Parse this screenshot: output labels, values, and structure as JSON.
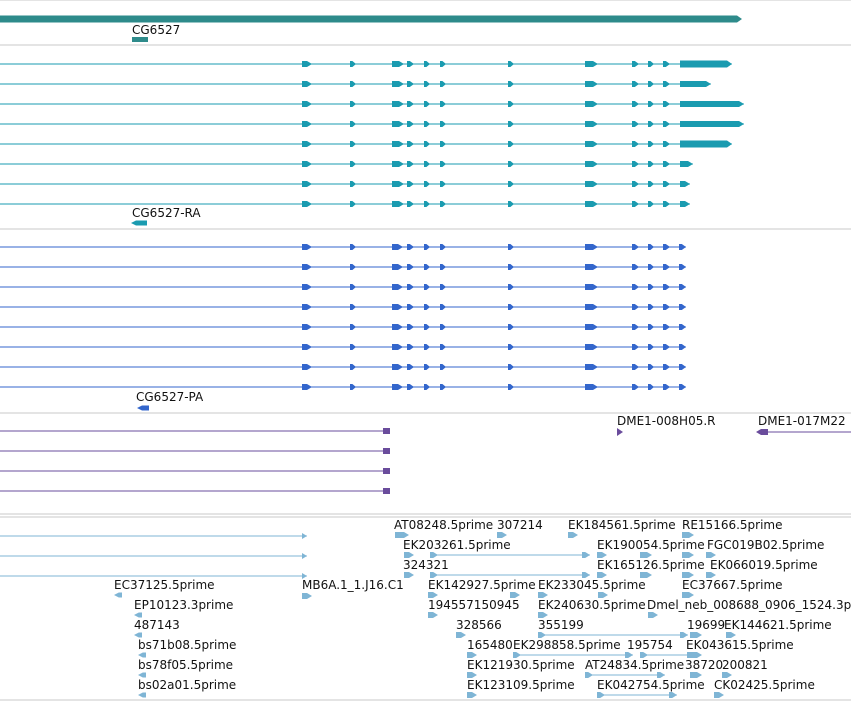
{
  "colors": {
    "gene": "#2e8b8b",
    "transcript": "#1a9bb0",
    "protein": "#3366cc",
    "clone": "#6a4c9c",
    "est": "#7fb5d5",
    "separator": "#c8c8c8",
    "text": "#111111"
  },
  "gene_track": {
    "gene_name": "CG6527"
  },
  "transcript_track": {
    "transcript_name": "CG6527-RA"
  },
  "protein_track": {
    "protein_name": "CG6527-PA"
  },
  "clone_track": {
    "clone_labels": [
      "DME1-008H05.R",
      "DME1-017M22"
    ]
  },
  "est_track": {
    "est_labels": [
      "AT08248.5prime",
      "307214",
      "EK184561.5prime",
      "RE15166.5prime",
      "EK203261.5prime",
      "EK190054.5prime",
      "FGC019B02.5prime",
      "324321",
      "EK165126.5prime",
      "EK066019.5prime",
      "EC37125.5prime",
      "MB6A.1_1.J16.C1",
      "EK142927.5prime",
      "EK233045.5prime",
      "EC37667.5prime",
      "EP10123.3prime",
      "194557150945",
      "EK240630.5prime",
      "Dmel_neb_008688_0906_1524.3p",
      "487143",
      "328566",
      "355199",
      "19699",
      "EK144621.5prime",
      "bs71b08.5prime",
      "165480",
      "EK298858.5prime",
      "195754",
      "EK043615.5prime",
      "bs78f05.5prime",
      "EK121930.5prime",
      "AT24834.5prime",
      "38720",
      "200821",
      "bs02a01.5prime",
      "EK123109.5prime",
      "EK042754.5prime",
      "CK02425.5prime"
    ]
  }
}
